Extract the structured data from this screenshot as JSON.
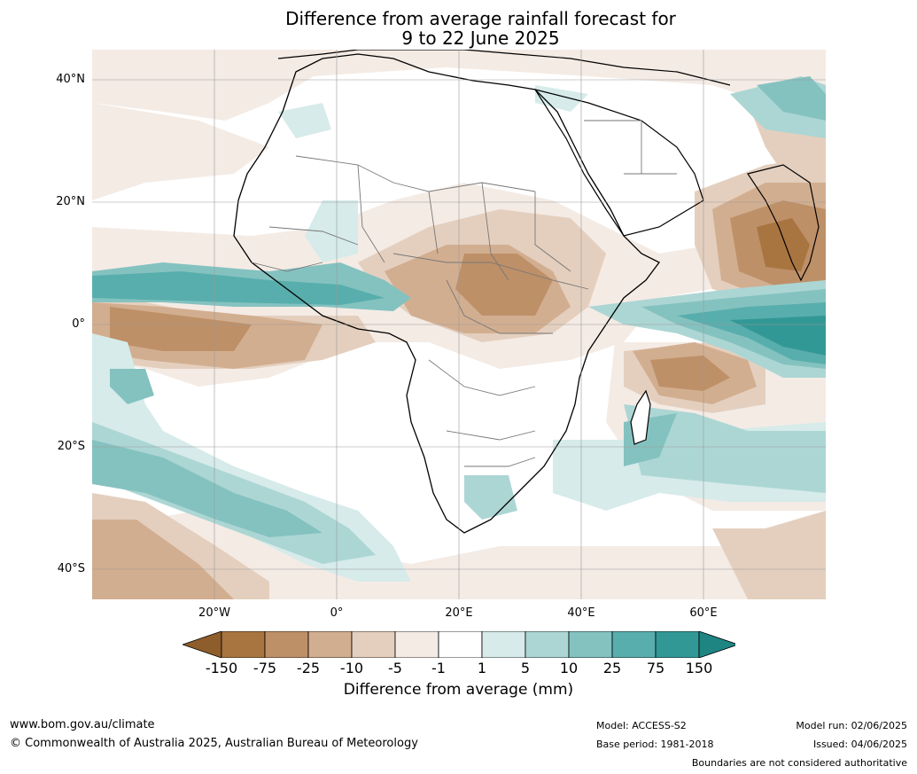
{
  "title": {
    "line1": "Difference from average rainfall forecast for",
    "line2": "9 to 22 June 2025"
  },
  "axes": {
    "lat_labels": [
      "40°N",
      "20°N",
      "0°",
      "20°S",
      "40°S"
    ],
    "lon_labels": [
      "20°W",
      "0°",
      "20°E",
      "40°E",
      "60°E"
    ]
  },
  "colorbar": {
    "title": "Difference from average (mm)",
    "ticks": [
      "-150",
      "-75",
      "-25",
      "-10",
      "-5",
      "-1",
      "1",
      "5",
      "10",
      "25",
      "75",
      "150"
    ],
    "colors": [
      "#a87540",
      "#be9068",
      "#d2ae90",
      "#e4cfbe",
      "#f4ebe5",
      "#ffffff",
      "#d6ebea",
      "#acd6d4",
      "#84c2c0",
      "#58aeac",
      "#329896"
    ]
  },
  "footer": {
    "url": "www.bom.gov.au/climate",
    "copyright": "© Commonwealth of Australia 2025, Australian Bureau of Meteorology",
    "model": "Model: ACCESS-S2",
    "base_period": "Base period: 1981-2018",
    "model_run": "Model run: 02/06/2025",
    "issued": "Issued: 04/06/2025",
    "disclaimer": "Boundaries are not considered authoritative"
  }
}
